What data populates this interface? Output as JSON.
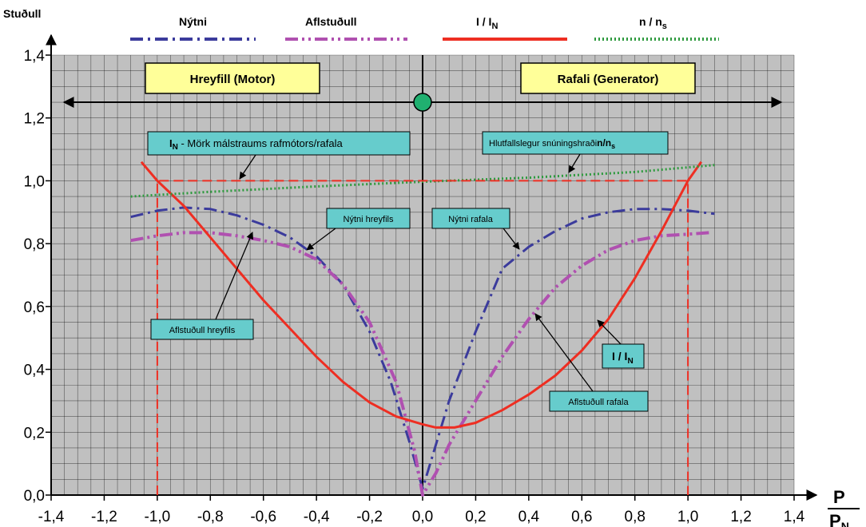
{
  "chart_data": {
    "type": "line",
    "ylabel": "Stuðull",
    "xlabel": {
      "num": "P",
      "den": "P",
      "den_sub": "N"
    },
    "xlim": [
      -1.4,
      1.4
    ],
    "ylim": [
      0.0,
      1.4
    ],
    "xticks": [
      "-1,4",
      "-1,2",
      "-1,0",
      "-0,8",
      "-0,6",
      "-0,4",
      "-0,2",
      "0,0",
      "0,2",
      "0,4",
      "0,6",
      "0,8",
      "1,0",
      "1,2",
      "1,4"
    ],
    "xtick_values": [
      -1.4,
      -1.2,
      -1.0,
      -0.8,
      -0.6,
      -0.4,
      -0.2,
      0.0,
      0.2,
      0.4,
      0.6,
      0.8,
      1.0,
      1.2,
      1.4
    ],
    "yticks": [
      "0,0",
      "0,2",
      "0,4",
      "0,6",
      "0,8",
      "1,0",
      "1,2",
      "1,4"
    ],
    "ytick_values": [
      0.0,
      0.2,
      0.4,
      0.6,
      0.8,
      1.0,
      1.2,
      1.4
    ],
    "grid": true,
    "legend_position": "top",
    "legend": [
      {
        "series": "efficiency",
        "label": "Nýtni"
      },
      {
        "series": "powerfactor",
        "label": "Aflstuðull"
      },
      {
        "series": "current",
        "label": "I / I",
        "sub": "N"
      },
      {
        "series": "speed",
        "label": "n / n",
        "sub": "s"
      }
    ],
    "series": [
      {
        "id": "efficiency",
        "color": "#3b3b9c",
        "style": "dashdot",
        "points": [
          [
            -1.1,
            0.885
          ],
          [
            -1.0,
            0.905
          ],
          [
            -0.9,
            0.915
          ],
          [
            -0.8,
            0.91
          ],
          [
            -0.7,
            0.89
          ],
          [
            -0.6,
            0.86
          ],
          [
            -0.5,
            0.82
          ],
          [
            -0.4,
            0.76
          ],
          [
            -0.3,
            0.67
          ],
          [
            -0.2,
            0.52
          ],
          [
            -0.12,
            0.36
          ],
          [
            -0.05,
            0.17
          ],
          [
            0.0,
            0.02
          ],
          [
            0.05,
            0.16
          ],
          [
            0.1,
            0.3
          ],
          [
            0.2,
            0.52
          ],
          [
            0.3,
            0.72
          ],
          [
            0.4,
            0.79
          ],
          [
            0.5,
            0.84
          ],
          [
            0.6,
            0.88
          ],
          [
            0.7,
            0.9
          ],
          [
            0.8,
            0.91
          ],
          [
            0.9,
            0.91
          ],
          [
            1.0,
            0.905
          ],
          [
            1.1,
            0.895
          ]
        ]
      },
      {
        "id": "powerfactor",
        "color": "#b050b0",
        "style": "dashdotdot",
        "points": [
          [
            -1.1,
            0.81
          ],
          [
            -1.0,
            0.825
          ],
          [
            -0.9,
            0.835
          ],
          [
            -0.8,
            0.835
          ],
          [
            -0.7,
            0.825
          ],
          [
            -0.6,
            0.81
          ],
          [
            -0.5,
            0.79
          ],
          [
            -0.4,
            0.75
          ],
          [
            -0.3,
            0.67
          ],
          [
            -0.2,
            0.55
          ],
          [
            -0.1,
            0.36
          ],
          [
            -0.03,
            0.14
          ],
          [
            0.0,
            0.0
          ],
          [
            0.05,
            0.07
          ],
          [
            0.1,
            0.16
          ],
          [
            0.2,
            0.3
          ],
          [
            0.3,
            0.44
          ],
          [
            0.4,
            0.56
          ],
          [
            0.5,
            0.66
          ],
          [
            0.6,
            0.73
          ],
          [
            0.7,
            0.78
          ],
          [
            0.8,
            0.81
          ],
          [
            0.9,
            0.825
          ],
          [
            1.0,
            0.83
          ],
          [
            1.08,
            0.835
          ]
        ]
      },
      {
        "id": "current",
        "color": "#ee2e22",
        "style": "solid",
        "points": [
          [
            -1.06,
            1.06
          ],
          [
            -1.0,
            1.0
          ],
          [
            -0.9,
            0.92
          ],
          [
            -0.8,
            0.82
          ],
          [
            -0.7,
            0.72
          ],
          [
            -0.6,
            0.62
          ],
          [
            -0.5,
            0.53
          ],
          [
            -0.4,
            0.44
          ],
          [
            -0.3,
            0.36
          ],
          [
            -0.2,
            0.295
          ],
          [
            -0.1,
            0.25
          ],
          [
            0.0,
            0.225
          ],
          [
            0.05,
            0.215
          ],
          [
            0.12,
            0.215
          ],
          [
            0.2,
            0.23
          ],
          [
            0.3,
            0.27
          ],
          [
            0.4,
            0.32
          ],
          [
            0.5,
            0.38
          ],
          [
            0.6,
            0.46
          ],
          [
            0.7,
            0.56
          ],
          [
            0.8,
            0.69
          ],
          [
            0.9,
            0.84
          ],
          [
            1.0,
            1.0
          ],
          [
            1.05,
            1.06
          ]
        ]
      },
      {
        "id": "speed",
        "color": "#2e9a3e",
        "style": "dotted",
        "points": [
          [
            -1.1,
            0.95
          ],
          [
            -0.8,
            0.965
          ],
          [
            -0.4,
            0.982
          ],
          [
            0.0,
            0.997
          ],
          [
            0.4,
            1.01
          ],
          [
            0.8,
            1.028
          ],
          [
            1.1,
            1.05
          ]
        ]
      },
      {
        "id": "limit",
        "color": "#ee2e22",
        "style": "dashed",
        "points": [
          [
            -1.0,
            0.0
          ],
          [
            -1.0,
            1.0
          ],
          [
            1.0,
            1.0
          ],
          [
            1.0,
            0.0
          ]
        ]
      }
    ],
    "arrow_line_y": 1.25,
    "center_marker": {
      "x": 0.0,
      "y": 1.25,
      "color": "#20b070"
    },
    "annotations": {
      "motor_box": "Hreyfill (Motor)",
      "generator_box": "Rafali (Generator)",
      "in_limit": {
        "main": "I",
        "sub": "N",
        "rest": " - Mörk málstraums rafmótors/rafala"
      },
      "speed_label": {
        "text": "Hlutfallslegur snúningshraði",
        "bold": "n/n",
        "sub": "s"
      },
      "eff_motor": "Nýtni hreyfils",
      "eff_gen": "Nýtni rafala",
      "pf_motor": "Aflstuðull hreyfils",
      "pf_gen": "Aflstuðull rafala",
      "current_label": {
        "main": "I / I",
        "sub": "N"
      }
    },
    "colors": {
      "plot_bg": "#c0c0c0",
      "box_yellow": "#ffff99",
      "box_cyan": "#66cccc"
    }
  }
}
